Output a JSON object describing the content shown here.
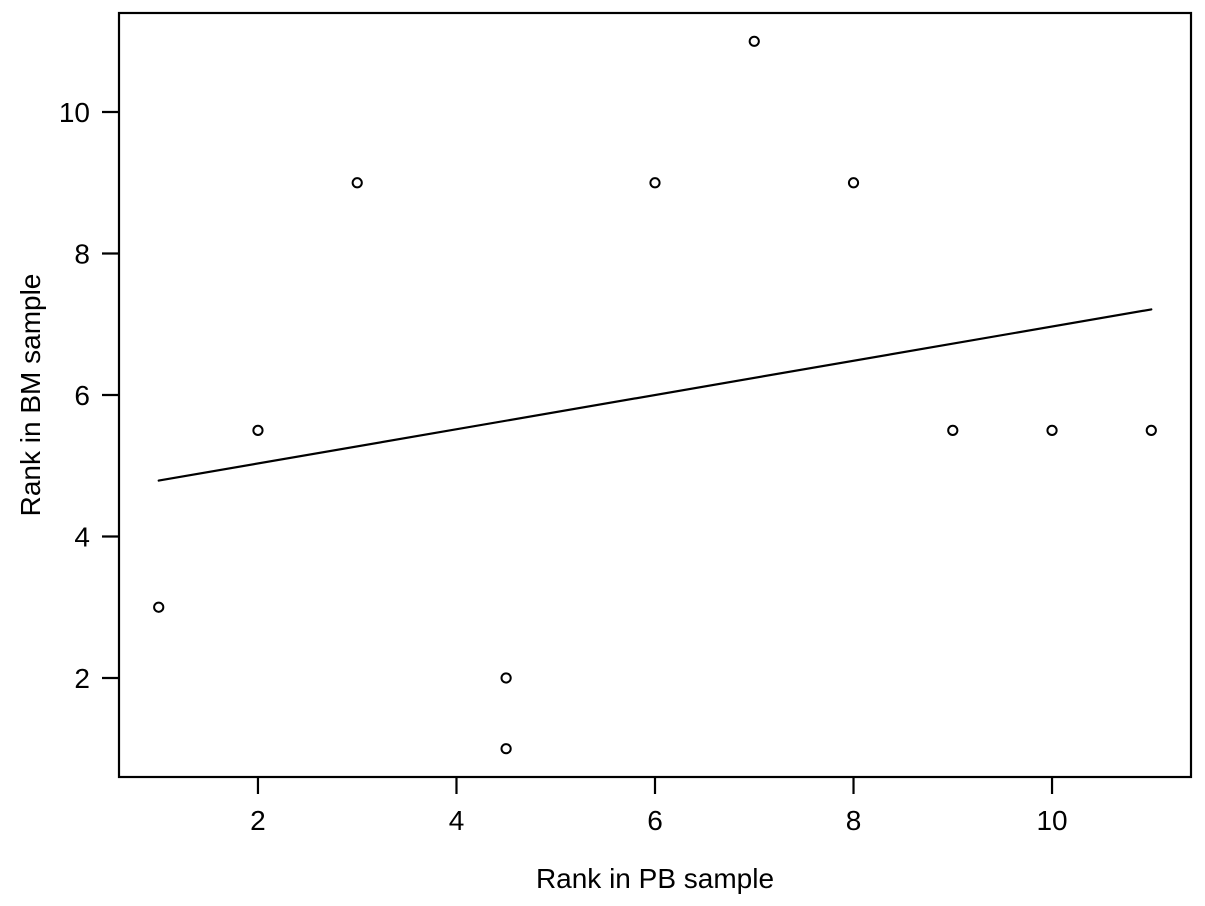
{
  "chart_data": {
    "type": "scatter",
    "title": "",
    "xlabel": "Rank in PB sample",
    "ylabel": "Rank in BM sample",
    "xlim": [
      0.6,
      11.4
    ],
    "ylim": [
      0.6,
      11.4
    ],
    "x_ticks": [
      2,
      4,
      6,
      8,
      10
    ],
    "y_ticks": [
      2,
      4,
      6,
      8,
      10
    ],
    "grid": false,
    "legend": false,
    "marker": "open-circle",
    "points": [
      {
        "x": 1,
        "y": 3
      },
      {
        "x": 2,
        "y": 5.5
      },
      {
        "x": 3,
        "y": 9
      },
      {
        "x": 4.5,
        "y": 1
      },
      {
        "x": 4.5,
        "y": 2
      },
      {
        "x": 6,
        "y": 9
      },
      {
        "x": 7,
        "y": 11
      },
      {
        "x": 8,
        "y": 9
      },
      {
        "x": 9,
        "y": 5.5
      },
      {
        "x": 10,
        "y": 5.5
      },
      {
        "x": 11,
        "y": 5.5
      }
    ],
    "fit_line": {
      "slope": 0.242,
      "intercept": 4.548,
      "x1": 1,
      "y1": 4.79,
      "x2": 11,
      "y2": 7.21
    },
    "colors": {
      "background": "#ffffff",
      "points": "#000000",
      "line": "#000000",
      "box": "#000000",
      "text": "#000000"
    }
  }
}
